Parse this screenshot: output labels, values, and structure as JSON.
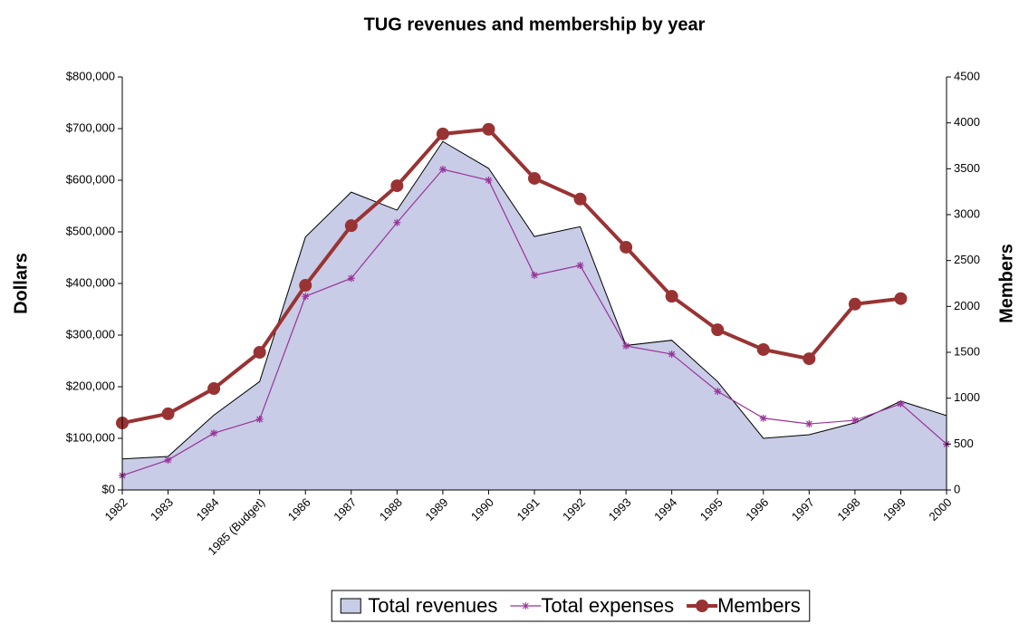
{
  "chart_data": {
    "type": "line",
    "title": "TUG revenues and membership by year",
    "y_label": "Dollars",
    "y2_label": "Members",
    "categories": [
      "1982",
      "1983",
      "1984",
      "1985 (Budget)",
      "1986",
      "1987",
      "1988",
      "1989",
      "1990",
      "1991",
      "1992",
      "1993",
      "1994",
      "1995",
      "1996",
      "1997",
      "1998",
      "1999",
      "2000"
    ],
    "series": [
      {
        "name": "Total revenues",
        "kind": "area",
        "color": "#c8cce6",
        "values": [
          60000,
          65000,
          145000,
          210000,
          490000,
          577000,
          542000,
          675000,
          623000,
          491000,
          510000,
          280000,
          290000,
          210000,
          100000,
          107000,
          130000,
          172000,
          144000
        ]
      },
      {
        "name": "Total expenses",
        "kind": "line",
        "color": "#993399",
        "values": [
          28000,
          58000,
          110000,
          137000,
          375000,
          410000,
          518000,
          621000,
          600000,
          416000,
          435000,
          279000,
          263000,
          191000,
          139000,
          128000,
          135000,
          167000,
          89000
        ]
      },
      {
        "name": "Members",
        "kind": "line",
        "color": "#993333",
        "axis": "y2",
        "values": [
          730,
          830,
          1105,
          1500,
          2230,
          2880,
          3315,
          3880,
          3930,
          3395,
          3170,
          2645,
          2110,
          1745,
          1530,
          1430,
          2025,
          2085,
          null
        ]
      }
    ],
    "ylim": [
      0,
      800000
    ],
    "yticks": [
      {
        "value": 0,
        "label": "$0"
      },
      {
        "value": 100000,
        "label": "$100,000"
      },
      {
        "value": 200000,
        "label": "$200,000"
      },
      {
        "value": 300000,
        "label": "$300,000"
      },
      {
        "value": 400000,
        "label": "$400,000"
      },
      {
        "value": 500000,
        "label": "$500,000"
      },
      {
        "value": 600000,
        "label": "$600,000"
      },
      {
        "value": 700000,
        "label": "$700,000"
      },
      {
        "value": 800000,
        "label": "$800,000"
      }
    ],
    "y2lim": [
      0,
      4500
    ],
    "y2ticks": [
      0,
      500,
      1000,
      1500,
      2000,
      2500,
      3000,
      3500,
      4000,
      4500
    ],
    "legend": "bottom"
  }
}
